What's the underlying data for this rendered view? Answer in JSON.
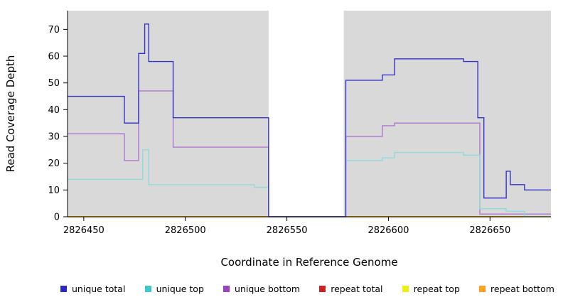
{
  "chart_data": {
    "type": "line",
    "title": "",
    "xlabel": "Coordinate in Reference Genome",
    "ylabel": "Read Coverage Depth",
    "xlim": [
      2826442,
      2826680
    ],
    "ylim": [
      0,
      77
    ],
    "xticks": [
      2826450,
      2826500,
      2826550,
      2826600,
      2826650
    ],
    "yticks": [
      0,
      10,
      20,
      30,
      40,
      50,
      60,
      70
    ],
    "plot_bg": "#d9d9d9",
    "gap_region": {
      "from": 2826541,
      "to": 2826578,
      "color": "#ffffff"
    },
    "grid": false,
    "legend_position": "bottom",
    "series": [
      {
        "name": "repeat total",
        "color": "#cc2222",
        "steps": [
          [
            2826442,
            0
          ]
        ]
      },
      {
        "name": "repeat top",
        "color": "#efef10",
        "steps": [
          [
            2826442,
            0
          ]
        ]
      },
      {
        "name": "repeat bottom",
        "color": "#ffa023",
        "steps": [
          [
            2826442,
            0
          ]
        ]
      },
      {
        "name": "unique bottom",
        "color": "#b177cf",
        "steps": [
          [
            2826442,
            31
          ],
          [
            2826470,
            21
          ],
          [
            2826477,
            47
          ],
          [
            2826494,
            26
          ],
          [
            2826541,
            0
          ],
          [
            2826579,
            30
          ],
          [
            2826597,
            34
          ],
          [
            2826603,
            35
          ],
          [
            2826645,
            1
          ]
        ]
      },
      {
        "name": "unique top",
        "color": "#8fdcdc",
        "steps": [
          [
            2826442,
            14
          ],
          [
            2826479,
            25
          ],
          [
            2826482,
            12
          ],
          [
            2826534,
            11
          ],
          [
            2826541,
            0
          ],
          [
            2826579,
            21
          ],
          [
            2826597,
            22
          ],
          [
            2826603,
            24
          ],
          [
            2826637,
            23
          ],
          [
            2826645,
            3
          ],
          [
            2826658,
            2
          ],
          [
            2826667,
            0
          ]
        ]
      },
      {
        "name": "unique total",
        "color": "#3434c8",
        "steps": [
          [
            2826442,
            45
          ],
          [
            2826470,
            35
          ],
          [
            2826477,
            61
          ],
          [
            2826480,
            72
          ],
          [
            2826482,
            58
          ],
          [
            2826494,
            37
          ],
          [
            2826541,
            0
          ],
          [
            2826579,
            51
          ],
          [
            2826597,
            53
          ],
          [
            2826603,
            59
          ],
          [
            2826637,
            58
          ],
          [
            2826644,
            37
          ],
          [
            2826647,
            7
          ],
          [
            2826658,
            17
          ],
          [
            2826660,
            12
          ],
          [
            2826667,
            10
          ]
        ]
      }
    ],
    "legend": [
      {
        "label": "unique total",
        "color": "#2a2ac0"
      },
      {
        "label": "unique top",
        "color": "#3fc8c8"
      },
      {
        "label": "unique bottom",
        "color": "#9a44bc"
      },
      {
        "label": "repeat total",
        "color": "#cc2222"
      },
      {
        "label": "repeat top",
        "color": "#efef10"
      },
      {
        "label": "repeat bottom",
        "color": "#ffa023"
      }
    ]
  }
}
